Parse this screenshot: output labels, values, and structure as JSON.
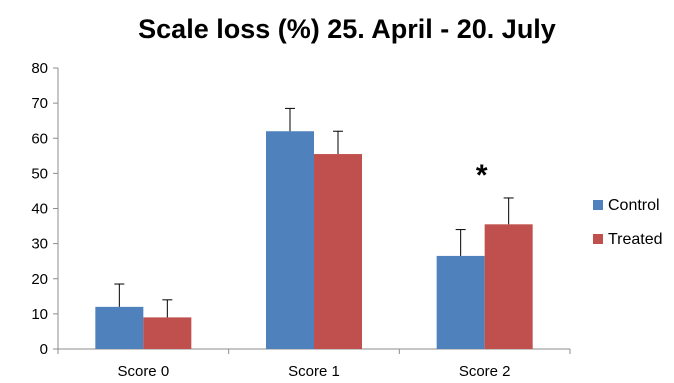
{
  "chart_data": {
    "type": "bar",
    "title": "Scale loss (%) 25. April - 20. July",
    "xlabel": "",
    "ylabel": "",
    "ylim": [
      0,
      80
    ],
    "yticks": [
      0,
      10,
      20,
      30,
      40,
      50,
      60,
      70,
      80
    ],
    "categories": [
      "Score 0",
      "Score 1",
      "Score 2"
    ],
    "series": [
      {
        "name": "Control",
        "values": [
          12,
          62,
          26.5
        ],
        "error": [
          6.5,
          6.5,
          7.5
        ],
        "color": "#4f81bd"
      },
      {
        "name": "Treated",
        "values": [
          9,
          55.5,
          35.5
        ],
        "error": [
          5,
          6.5,
          7.5
        ],
        "color": "#c0504d"
      }
    ],
    "annotations": [
      {
        "text": "*",
        "category": "Score 2"
      }
    ],
    "grid": false,
    "legend": "right"
  }
}
